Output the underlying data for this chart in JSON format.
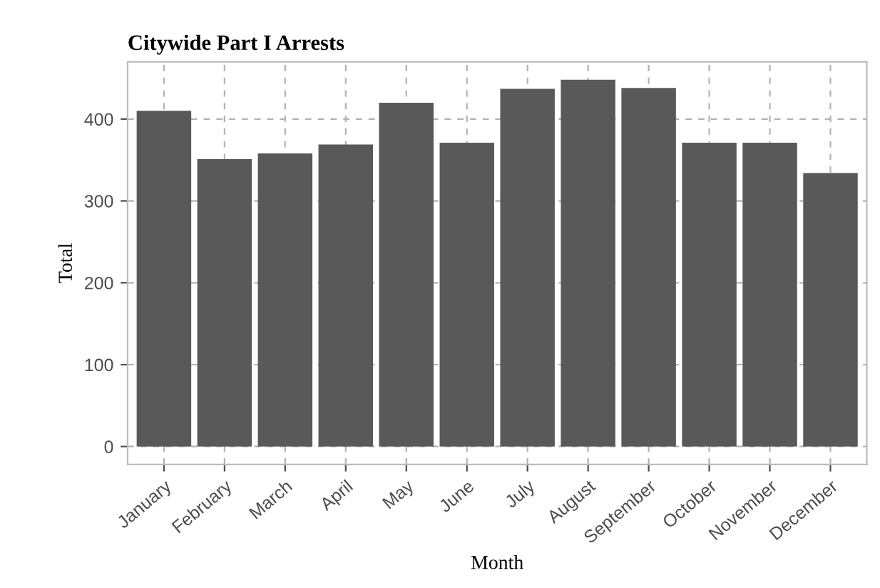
{
  "chart_data": {
    "type": "bar",
    "title": "Citywide Part I Arrests",
    "xlabel": "Month",
    "ylabel": "Total",
    "categories": [
      "January",
      "February",
      "March",
      "April",
      "May",
      "June",
      "July",
      "August",
      "September",
      "October",
      "November",
      "December"
    ],
    "values": [
      410,
      351,
      358,
      369,
      420,
      371,
      437,
      448,
      438,
      371,
      371,
      334
    ],
    "color": "#595959",
    "ylim": [
      -22,
      470
    ],
    "yticks": [
      0,
      100,
      200,
      300,
      400
    ],
    "grid": true
  }
}
